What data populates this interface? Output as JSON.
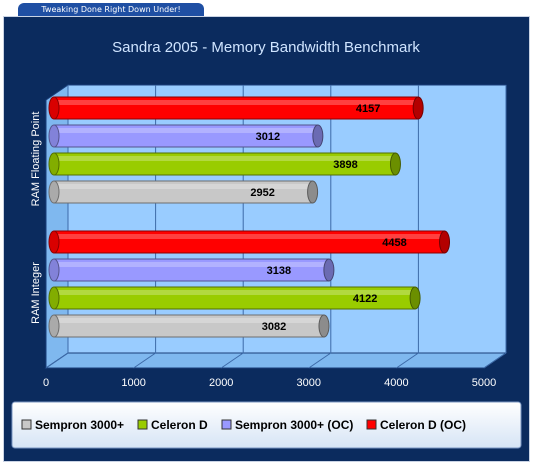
{
  "banner": {
    "text": "Tweaking Done Right Down Under!"
  },
  "colors": {
    "background": "#0b2b5e",
    "plot_area": "#99ccff",
    "axis_text": "#ffffff",
    "title_text": "#cfe4ff"
  },
  "chart_data": {
    "type": "bar",
    "orientation": "horizontal",
    "title": "Sandra 2005 - Memory Bandwidth Benchmark",
    "xlim": [
      0,
      5000
    ],
    "x_ticks": [
      "0",
      "1000",
      "2000",
      "3000",
      "4000",
      "5000"
    ],
    "grid": true,
    "legend_position": "bottom",
    "categories": [
      "RAM Floating Point",
      "RAM Integer"
    ],
    "series": [
      {
        "name": "Sempron 3000+",
        "color": "#c8c8c8",
        "values": [
          2952,
          3082
        ]
      },
      {
        "name": "Celeron D",
        "color": "#99cc00",
        "values": [
          3898,
          4122
        ]
      },
      {
        "name": "Sempron 3000+ (OC)",
        "color": "#9999ff",
        "values": [
          3012,
          3138
        ]
      },
      {
        "name": "Celeron D (OC)",
        "color": "#ff0000",
        "values": [
          4157,
          4458
        ]
      }
    ]
  }
}
